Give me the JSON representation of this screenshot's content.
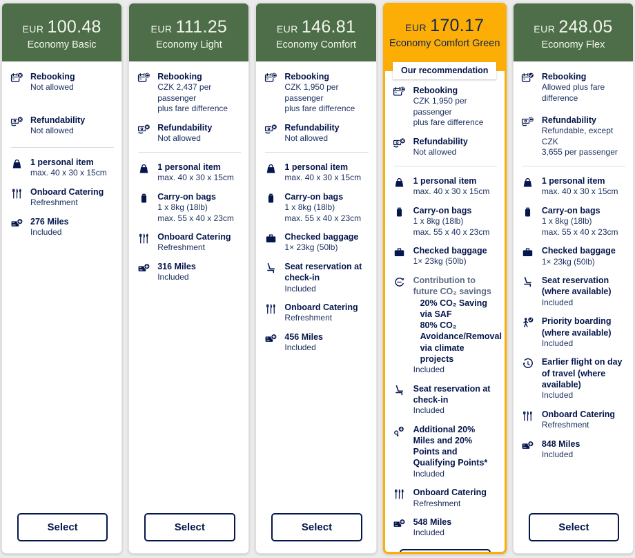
{
  "badge_label": "Our recommendation",
  "select_label": "Select",
  "colors": {
    "header_green": "#4e6e49",
    "highlight_orange": "#fcae06",
    "navy_text": "#05164c"
  },
  "fares": [
    {
      "currency": "EUR",
      "price": "100.48",
      "name": "Economy Basic",
      "recommended": false,
      "top_features": [
        {
          "icon": "rebooking-not-allowed",
          "title": "Rebooking",
          "lines": [
            "Not allowed"
          ]
        },
        {
          "icon": "refund-not-allowed",
          "title": "Refundability",
          "lines": [
            "Not allowed"
          ]
        }
      ],
      "features": [
        {
          "icon": "personal-item",
          "title": "1 personal item",
          "lines": [
            "max. 40 x 30 x 15cm"
          ]
        },
        {
          "icon": "onboard-catering",
          "title": "Onboard Catering",
          "lines": [
            "Refreshment"
          ]
        },
        {
          "icon": "miles",
          "title": "276 Miles",
          "lines": [
            "Included"
          ]
        }
      ]
    },
    {
      "currency": "EUR",
      "price": "111.25",
      "name": "Economy Light",
      "recommended": false,
      "top_features": [
        {
          "icon": "rebooking-fee",
          "title": "Rebooking",
          "lines": [
            "CZK 2,437 per passenger",
            "plus fare difference"
          ]
        },
        {
          "icon": "refund-not-allowed",
          "title": "Refundability",
          "lines": [
            "Not allowed"
          ]
        }
      ],
      "features": [
        {
          "icon": "personal-item",
          "title": "1 personal item",
          "lines": [
            "max. 40 x 30 x 15cm"
          ]
        },
        {
          "icon": "carry-on-bag",
          "title": "Carry-on bags",
          "lines": [
            "1 x 8kg (18lb)",
            "max. 55 x 40 x 23cm"
          ]
        },
        {
          "icon": "onboard-catering",
          "title": "Onboard Catering",
          "lines": [
            "Refreshment"
          ]
        },
        {
          "icon": "miles",
          "title": "316 Miles",
          "lines": [
            "Included"
          ]
        }
      ]
    },
    {
      "currency": "EUR",
      "price": "146.81",
      "name": "Economy Comfort",
      "recommended": false,
      "top_features": [
        {
          "icon": "rebooking-fee",
          "title": "Rebooking",
          "lines": [
            "CZK 1,950 per passenger",
            "plus fare difference"
          ]
        },
        {
          "icon": "refund-not-allowed",
          "title": "Refundability",
          "lines": [
            "Not allowed"
          ]
        }
      ],
      "features": [
        {
          "icon": "personal-item",
          "title": "1 personal item",
          "lines": [
            "max. 40 x 30 x 15cm"
          ]
        },
        {
          "icon": "carry-on-bag",
          "title": "Carry-on bags",
          "lines": [
            "1 x 8kg (18lb)",
            "max. 55 x 40 x 23cm"
          ]
        },
        {
          "icon": "checked-baggage",
          "title": "Checked baggage",
          "lines": [
            "1× 23kg (50lb)"
          ]
        },
        {
          "icon": "seat-reservation",
          "title": "Seat reservation at check-in",
          "lines": [
            "Included"
          ]
        },
        {
          "icon": "onboard-catering",
          "title": "Onboard Catering",
          "lines": [
            "Refreshment"
          ]
        },
        {
          "icon": "miles",
          "title": "456 Miles",
          "lines": [
            "Included"
          ]
        }
      ]
    },
    {
      "currency": "EUR",
      "price": "170.17",
      "name": "Economy Comfort Green",
      "recommended": true,
      "top_features": [
        {
          "icon": "rebooking-fee",
          "title": "Rebooking",
          "lines": [
            "CZK 1,950 per passenger",
            "plus fare difference"
          ]
        },
        {
          "icon": "refund-not-allowed",
          "title": "Refundability",
          "lines": [
            "Not allowed"
          ]
        }
      ],
      "features": [
        {
          "icon": "personal-item",
          "title": "1 personal item",
          "lines": [
            "max. 40 x 30 x 15cm"
          ]
        },
        {
          "icon": "carry-on-bag",
          "title": "Carry-on bags",
          "lines": [
            "1 x 8kg (18lb)",
            "max. 55 x 40 x 23cm"
          ]
        },
        {
          "icon": "checked-baggage",
          "title": "Checked baggage",
          "lines": [
            "1× 23kg (50lb)"
          ]
        },
        {
          "icon": "co2-savings",
          "title": "Contribution to future CO₂ savings",
          "muted_title": true,
          "bold_lines": [
            "20% CO₂ Saving via SAF",
            "80% CO₂ Avoidance/Removal via climate projects"
          ],
          "lines": [
            "Included"
          ]
        },
        {
          "icon": "seat-reservation",
          "title": "Seat reservation at check-in",
          "lines": [
            "Included"
          ]
        },
        {
          "icon": "bonus-points",
          "title": "Additional 20% Miles and 20% Points and Qualifying Points*",
          "lines": [
            "Included"
          ]
        },
        {
          "icon": "onboard-catering",
          "title": "Onboard Catering",
          "lines": [
            "Refreshment"
          ]
        },
        {
          "icon": "miles",
          "title": "548 Miles",
          "lines": [
            "Included"
          ]
        }
      ]
    },
    {
      "currency": "EUR",
      "price": "248.05",
      "name": "Economy Flex",
      "recommended": false,
      "top_features": [
        {
          "icon": "rebooking-allowed",
          "title": "Rebooking",
          "lines": [
            "Allowed plus fare difference"
          ]
        },
        {
          "icon": "refund-allowed",
          "title": "Refundability",
          "lines": [
            "Refundable, except CZK",
            "3,655 per passenger"
          ]
        }
      ],
      "features": [
        {
          "icon": "personal-item",
          "title": "1 personal item",
          "lines": [
            "max. 40 x 30 x 15cm"
          ]
        },
        {
          "icon": "carry-on-bag",
          "title": "Carry-on bags",
          "lines": [
            "1 x 8kg (18lb)",
            "max. 55 x 40 x 23cm"
          ]
        },
        {
          "icon": "checked-baggage",
          "title": "Checked baggage",
          "lines": [
            "1× 23kg (50lb)"
          ]
        },
        {
          "icon": "seat-reservation",
          "title": "Seat reservation (where available)",
          "lines": [
            "Included"
          ]
        },
        {
          "icon": "priority-boarding",
          "title": "Priority boarding (where available)",
          "lines": [
            "Included"
          ]
        },
        {
          "icon": "earlier-flight",
          "title": "Earlier flight on day of travel (where available)",
          "lines": [
            "Included"
          ]
        },
        {
          "icon": "onboard-catering",
          "title": "Onboard Catering",
          "lines": [
            "Refreshment"
          ]
        },
        {
          "icon": "miles",
          "title": "848 Miles",
          "lines": [
            "Included"
          ]
        }
      ]
    }
  ]
}
